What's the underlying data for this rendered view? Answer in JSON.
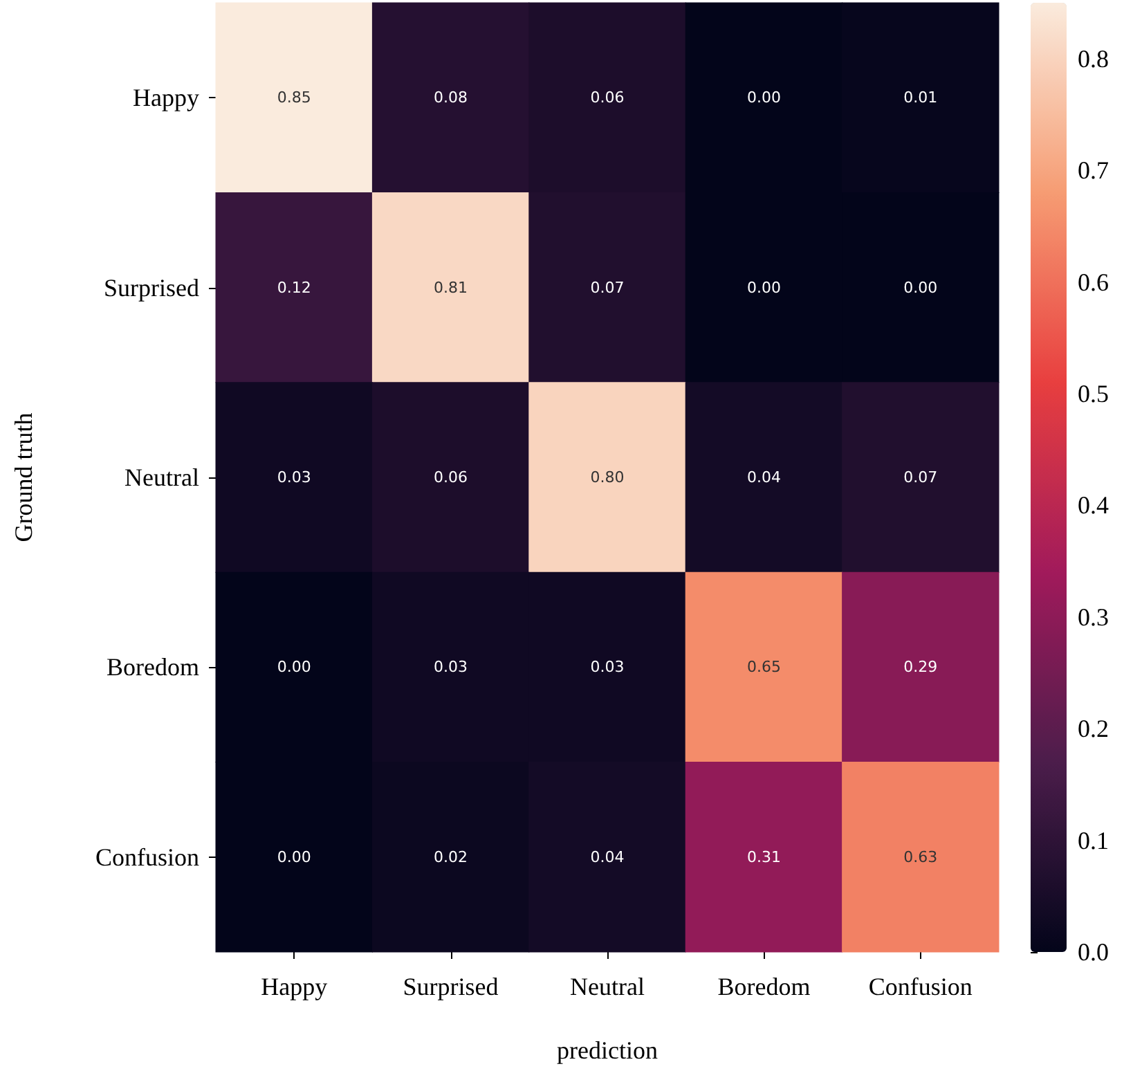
{
  "chart_data": {
    "type": "heatmap",
    "xlabel": "prediction",
    "ylabel": "Ground truth",
    "categories": [
      "Happy",
      "Surprised",
      "Neutral",
      "Boredom",
      "Confusion"
    ],
    "y_categories": [
      "Happy",
      "Surprised",
      "Neutral",
      "Boredom",
      "Confusion"
    ],
    "cells": [
      [
        0.85,
        0.08,
        0.06,
        0.0,
        0.01
      ],
      [
        0.12,
        0.81,
        0.07,
        0.0,
        0.0
      ],
      [
        0.03,
        0.06,
        0.8,
        0.04,
        0.07
      ],
      [
        0.0,
        0.03,
        0.03,
        0.65,
        0.29
      ],
      [
        0.0,
        0.02,
        0.04,
        0.31,
        0.63
      ]
    ],
    "cell_labels": [
      [
        "0.85",
        "0.08",
        "0.06",
        "0.00",
        "0.01"
      ],
      [
        "0.12",
        "0.81",
        "0.07",
        "0.00",
        "0.00"
      ],
      [
        "0.03",
        "0.06",
        "0.80",
        "0.04",
        "0.07"
      ],
      [
        "0.00",
        "0.03",
        "0.03",
        "0.65",
        "0.29"
      ],
      [
        "0.00",
        "0.02",
        "0.04",
        "0.31",
        "0.63"
      ]
    ],
    "clim": [
      0,
      0.85
    ],
    "cticks": [
      {
        "value": 0,
        "label": "0.0"
      },
      {
        "value": 0.1,
        "label": "0.1"
      },
      {
        "value": 0.2,
        "label": "0.2"
      },
      {
        "value": 0.3,
        "label": "0.3"
      },
      {
        "value": 0.4,
        "label": "0.4"
      },
      {
        "value": 0.5,
        "label": "0.5"
      },
      {
        "value": 0.6,
        "label": "0.6"
      },
      {
        "value": 0.7,
        "label": "0.7"
      },
      {
        "value": 0.8,
        "label": "0.8"
      }
    ]
  }
}
